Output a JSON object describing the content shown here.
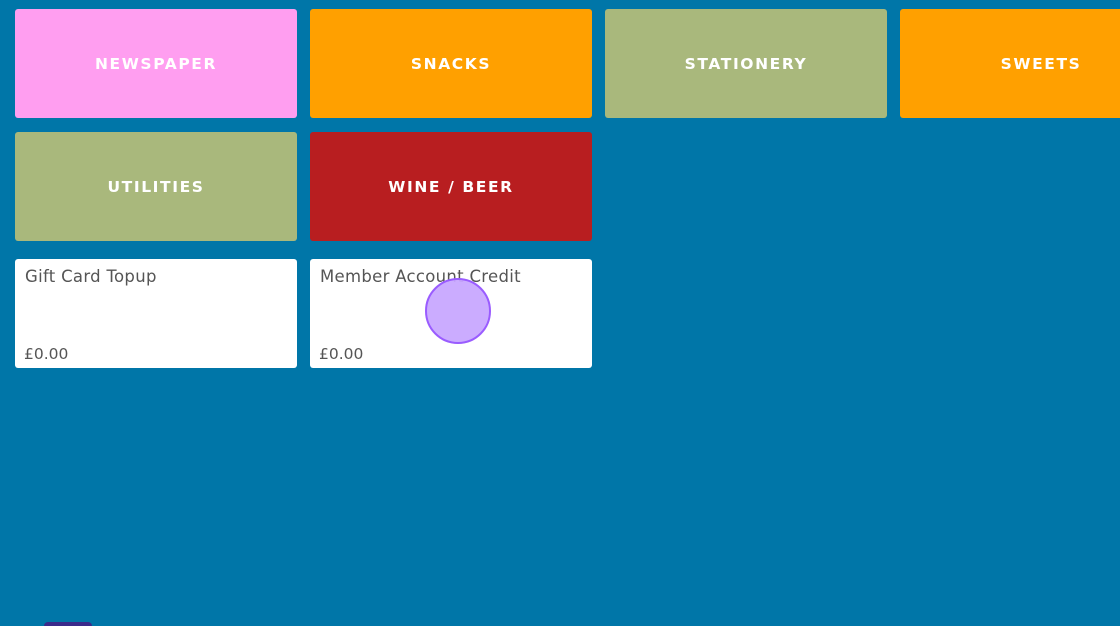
{
  "categories": [
    {
      "label": "NEWSPAPER",
      "color": "#ff9ef0"
    },
    {
      "label": "SNACKS",
      "color": "#ffa000"
    },
    {
      "label": "STATIONERY",
      "color": "#a9b87c"
    },
    {
      "label": "SWEETS",
      "color": "#ffa000"
    },
    {
      "label": "UTILITIES",
      "color": "#a9b87c"
    },
    {
      "label": "WINE / BEER",
      "color": "#b81e20"
    }
  ],
  "products": [
    {
      "name": "Gift Card Topup",
      "price": "£0.00"
    },
    {
      "name": "Member Account Credit",
      "price": "£0.00"
    }
  ]
}
